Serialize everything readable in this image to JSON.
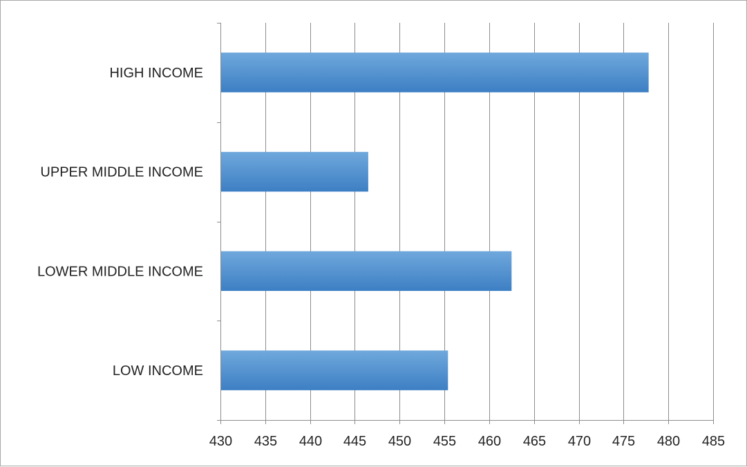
{
  "chart_data": {
    "type": "bar",
    "orientation": "horizontal",
    "categories": [
      "HIGH INCOME",
      "UPPER MIDDLE INCOME",
      "LOWER MIDDLE INCOME",
      "LOW INCOME"
    ],
    "values": [
      477.8,
      446.5,
      462.5,
      455.4
    ],
    "xlim": [
      430,
      485
    ],
    "xticks": [
      430,
      435,
      440,
      445,
      450,
      455,
      460,
      465,
      470,
      475,
      480,
      485
    ],
    "title": "",
    "xlabel": "",
    "ylabel": "",
    "grid": "vertical",
    "legend": "none",
    "colors": {
      "bar_top": "#6fa8dc",
      "bar_bottom": "#3d7fc4",
      "grid": "#8c8c8c"
    }
  }
}
